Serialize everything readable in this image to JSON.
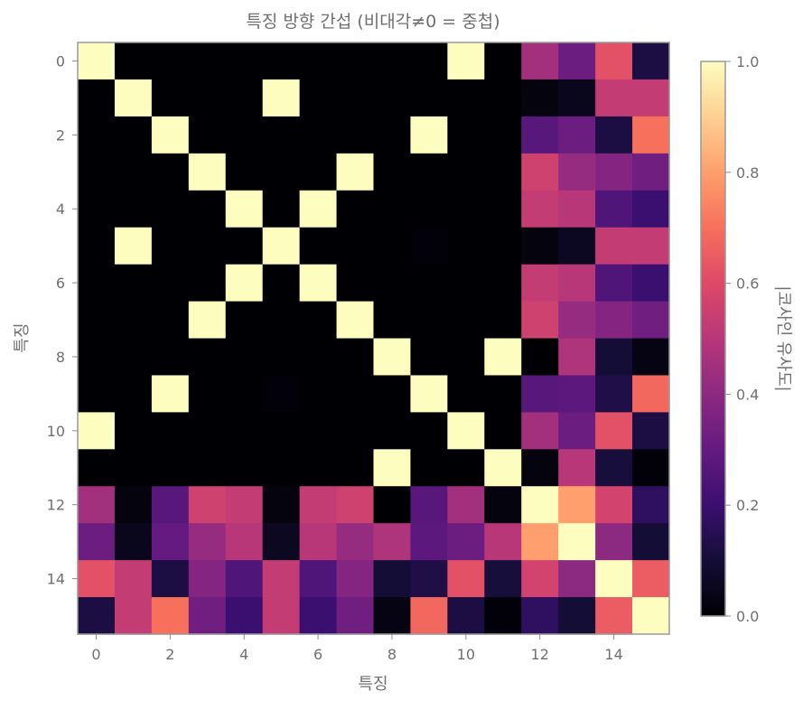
{
  "chart_data": {
    "type": "heatmap",
    "title": "특징 방향 간섭 (비대각≠0 = 중첩)",
    "xlabel": "특징",
    "ylabel": "특징",
    "colormap": "magma",
    "x_ticks": [
      0,
      2,
      4,
      6,
      8,
      10,
      12,
      14
    ],
    "y_ticks": [
      0,
      2,
      4,
      6,
      8,
      10,
      12,
      14
    ],
    "rows": 16,
    "cols": 16,
    "values": [
      [
        1.0,
        0.0,
        0.0,
        0.0,
        0.0,
        0.0,
        0.0,
        0.0,
        0.0,
        0.0,
        1.0,
        0.0,
        0.45,
        0.32,
        0.62,
        0.12
      ],
      [
        0.0,
        1.0,
        0.0,
        0.0,
        0.0,
        1.0,
        0.0,
        0.0,
        0.0,
        0.0,
        0.0,
        0.0,
        0.02,
        0.05,
        0.53,
        0.53
      ],
      [
        0.0,
        0.0,
        1.0,
        0.0,
        0.0,
        0.0,
        0.0,
        0.0,
        0.0,
        1.0,
        0.0,
        0.0,
        0.27,
        0.32,
        0.12,
        0.7
      ],
      [
        0.0,
        0.0,
        0.0,
        1.0,
        0.0,
        0.0,
        0.0,
        1.0,
        0.0,
        0.0,
        0.0,
        0.0,
        0.56,
        0.42,
        0.38,
        0.33
      ],
      [
        0.0,
        0.0,
        0.0,
        0.0,
        1.0,
        0.0,
        1.0,
        0.0,
        0.0,
        0.0,
        0.0,
        0.0,
        0.53,
        0.5,
        0.25,
        0.2
      ],
      [
        0.0,
        1.0,
        0.0,
        0.0,
        0.0,
        1.0,
        0.0,
        0.0,
        0.0,
        0.01,
        0.0,
        0.0,
        0.02,
        0.06,
        0.53,
        0.53
      ],
      [
        0.0,
        0.0,
        0.0,
        0.0,
        1.0,
        0.0,
        1.0,
        0.0,
        0.0,
        0.0,
        0.0,
        0.0,
        0.53,
        0.5,
        0.25,
        0.2
      ],
      [
        0.0,
        0.0,
        0.0,
        1.0,
        0.0,
        0.0,
        0.0,
        1.0,
        0.0,
        0.0,
        0.0,
        0.0,
        0.56,
        0.42,
        0.38,
        0.33
      ],
      [
        0.0,
        0.0,
        0.0,
        0.0,
        0.0,
        0.0,
        0.0,
        0.0,
        1.0,
        0.0,
        0.0,
        1.0,
        0.0,
        0.48,
        0.1,
        0.03
      ],
      [
        0.0,
        0.0,
        1.0,
        0.0,
        0.0,
        0.01,
        0.0,
        0.0,
        0.0,
        1.0,
        0.0,
        0.0,
        0.27,
        0.28,
        0.13,
        0.68
      ],
      [
        1.0,
        0.0,
        0.0,
        0.0,
        0.0,
        0.0,
        0.0,
        0.0,
        0.0,
        0.0,
        1.0,
        0.0,
        0.45,
        0.32,
        0.62,
        0.12
      ],
      [
        0.0,
        0.0,
        0.0,
        0.0,
        0.0,
        0.0,
        0.0,
        0.0,
        1.0,
        0.0,
        0.0,
        1.0,
        0.02,
        0.5,
        0.11,
        0.01
      ],
      [
        0.45,
        0.02,
        0.27,
        0.56,
        0.53,
        0.02,
        0.53,
        0.56,
        0.0,
        0.27,
        0.45,
        0.02,
        1.0,
        0.8,
        0.57,
        0.17
      ],
      [
        0.32,
        0.05,
        0.3,
        0.42,
        0.5,
        0.06,
        0.5,
        0.42,
        0.48,
        0.28,
        0.32,
        0.5,
        0.8,
        1.0,
        0.4,
        0.1
      ],
      [
        0.62,
        0.53,
        0.12,
        0.38,
        0.25,
        0.53,
        0.25,
        0.38,
        0.1,
        0.13,
        0.62,
        0.11,
        0.57,
        0.4,
        1.0,
        0.65
      ],
      [
        0.12,
        0.53,
        0.7,
        0.33,
        0.2,
        0.53,
        0.2,
        0.33,
        0.03,
        0.68,
        0.12,
        0.01,
        0.17,
        0.1,
        0.65,
        1.0
      ]
    ],
    "colorbar": {
      "label": "|코사인 유사도|",
      "min": 0.0,
      "max": 1.0,
      "ticks": [
        0.0,
        0.2,
        0.4,
        0.6,
        0.8,
        1.0
      ],
      "tick_labels": [
        "0.0",
        "0.2",
        "0.4",
        "0.6",
        "0.8",
        "1.0"
      ]
    }
  }
}
